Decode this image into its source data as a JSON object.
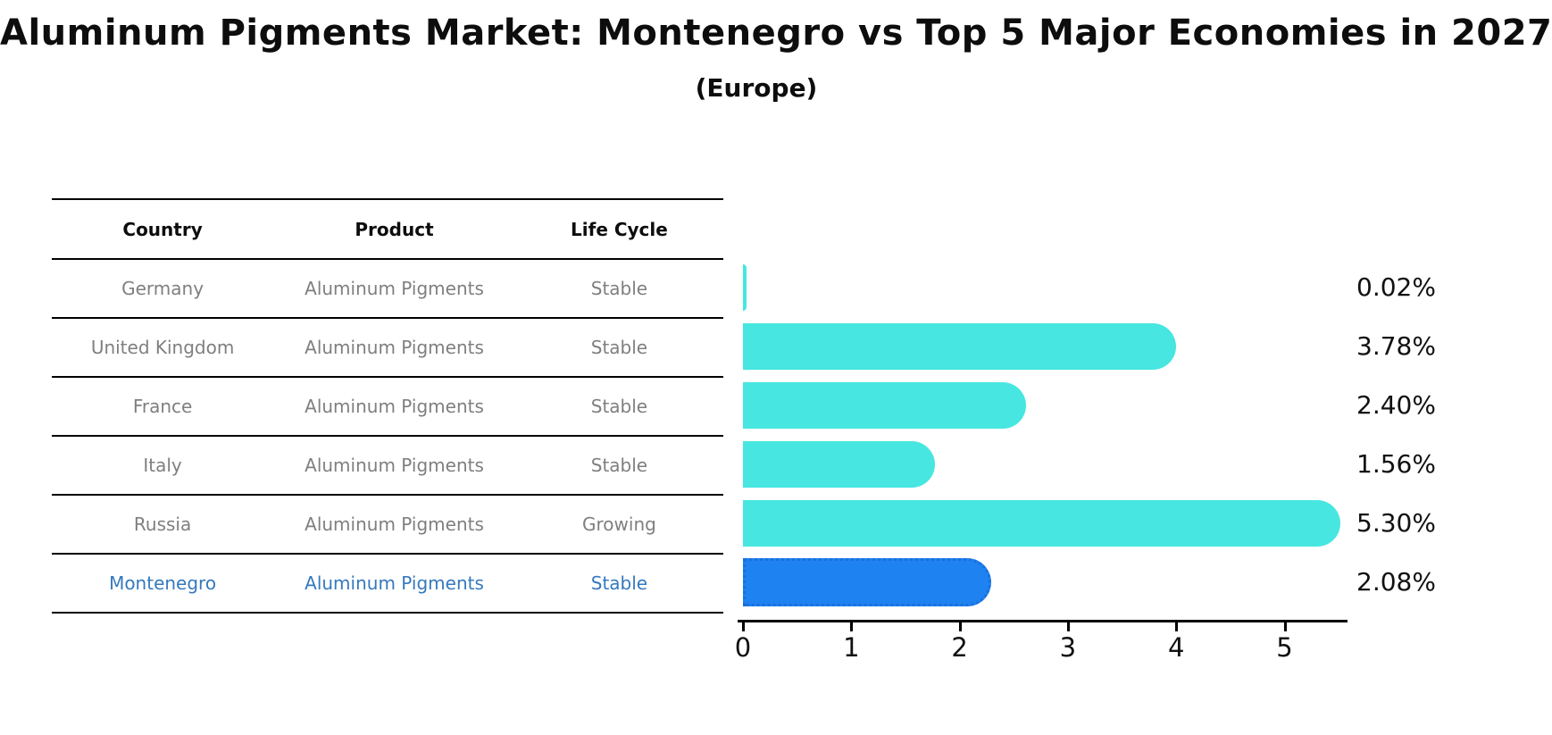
{
  "title": "Aluminum Pigments Market: Montenegro vs Top 5 Major Economies in 2027",
  "subtitle": "(Europe)",
  "colors": {
    "bar_default": "#47e6e1",
    "bar_highlight": "#1e82f0",
    "highlight_text": "#3579be",
    "row_text": "#7f7f7f",
    "header_text": "#0d0d0d",
    "axis": "#000000"
  },
  "table": {
    "headers": [
      "Country",
      "Product",
      "Life Cycle"
    ],
    "rows": [
      {
        "country": "Germany",
        "product": "Aluminum Pigments",
        "life_cycle": "Stable",
        "highlight": false
      },
      {
        "country": "United Kingdom",
        "product": "Aluminum Pigments",
        "life_cycle": "Stable",
        "highlight": false
      },
      {
        "country": "France",
        "product": "Aluminum Pigments",
        "life_cycle": "Stable",
        "highlight": false
      },
      {
        "country": "Italy",
        "product": "Aluminum Pigments",
        "life_cycle": "Stable",
        "highlight": false
      },
      {
        "country": "Russia",
        "product": "Aluminum Pigments",
        "life_cycle": "Growing",
        "highlight": false
      },
      {
        "country": "Montenegro",
        "product": "Aluminum Pigments",
        "life_cycle": "Stable",
        "highlight": true
      }
    ]
  },
  "chart_data": {
    "type": "bar",
    "orientation": "horizontal",
    "title": "Aluminum Pigments Market: Montenegro vs Top 5 Major Economies in 2027 (Europe)",
    "categories": [
      "Germany",
      "United Kingdom",
      "France",
      "Italy",
      "Russia",
      "Montenegro"
    ],
    "values": [
      0.02,
      3.78,
      2.4,
      1.56,
      5.3,
      2.08
    ],
    "value_labels": [
      "0.02%",
      "3.78%",
      "2.40%",
      "1.56%",
      "5.30%",
      "2.08%"
    ],
    "highlight_index": 5,
    "xlabel": "",
    "ylabel": "",
    "xlim": [
      0,
      5.57
    ],
    "xticks": [
      0,
      1,
      2,
      3,
      4,
      5
    ],
    "xtick_labels": [
      "0",
      "1",
      "2",
      "3",
      "4",
      "5"
    ],
    "grid": false,
    "legend": false
  }
}
